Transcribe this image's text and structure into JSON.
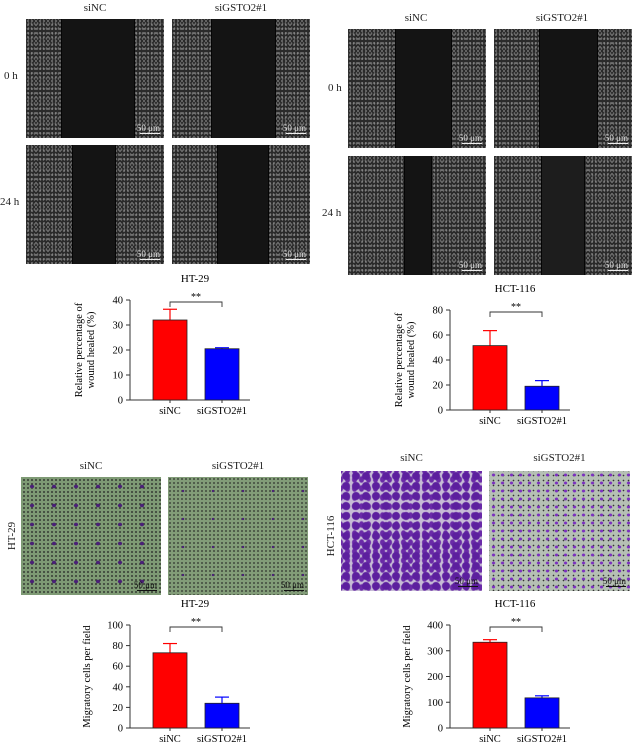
{
  "panels": {
    "wound_ht29": {
      "col_labels": [
        "siNC",
        "siGSTO2#1"
      ],
      "row_labels": [
        "0 h",
        "24 h"
      ],
      "scale_bar": "50 μm"
    },
    "wound_hct116": {
      "col_labels": [
        "siNC",
        "siGSTO2#1"
      ],
      "row_labels": [
        "0 h",
        "24 h"
      ],
      "scale_bar": "50 μm"
    },
    "transwell_ht29": {
      "col_labels": [
        "siNC",
        "siGSTO2#1"
      ],
      "row_label": "HT-29",
      "scale_bar": "50 μm"
    },
    "transwell_hct116": {
      "col_labels": [
        "siNC",
        "siGSTO2#1"
      ],
      "row_label": "HCT-116",
      "scale_bar": "50 μm"
    }
  },
  "colors": {
    "siNC": "#ff0000",
    "siGSTO2": "#0000ff"
  },
  "chart_data": [
    {
      "type": "bar",
      "title": "HT-29",
      "categories": [
        "siNC",
        "siGSTO2#1"
      ],
      "values": [
        32,
        20.5
      ],
      "errors": [
        4.3,
        0.4
      ],
      "ylabel": "Relative percentage of wound healed (%)",
      "ylim": [
        0,
        40
      ],
      "yticks": [
        0,
        10,
        20,
        30,
        40
      ],
      "significance": "**"
    },
    {
      "type": "bar",
      "title": "HCT-116",
      "categories": [
        "siNC",
        "siGSTO2#1"
      ],
      "values": [
        51.5,
        19
      ],
      "errors": [
        12,
        4.5
      ],
      "ylabel": "Relative percentage of wound healed (%)",
      "ylim": [
        0,
        80
      ],
      "yticks": [
        0,
        20,
        40,
        60,
        80
      ],
      "significance": "**"
    },
    {
      "type": "bar",
      "title": "HT-29",
      "categories": [
        "siNC",
        "siGSTO2#1"
      ],
      "values": [
        73,
        24
      ],
      "errors": [
        9,
        6
      ],
      "ylabel": "Migratory cells per field",
      "ylim": [
        0,
        100
      ],
      "yticks": [
        0,
        20,
        40,
        60,
        80,
        100
      ],
      "significance": "**"
    },
    {
      "type": "bar",
      "title": "HCT-116",
      "categories": [
        "siNC",
        "siGSTO2#1"
      ],
      "values": [
        333,
        117
      ],
      "errors": [
        10,
        8
      ],
      "ylabel": "Migratory cells per field",
      "ylim": [
        0,
        400
      ],
      "yticks": [
        0,
        100,
        200,
        300,
        400
      ],
      "significance": "**"
    }
  ]
}
